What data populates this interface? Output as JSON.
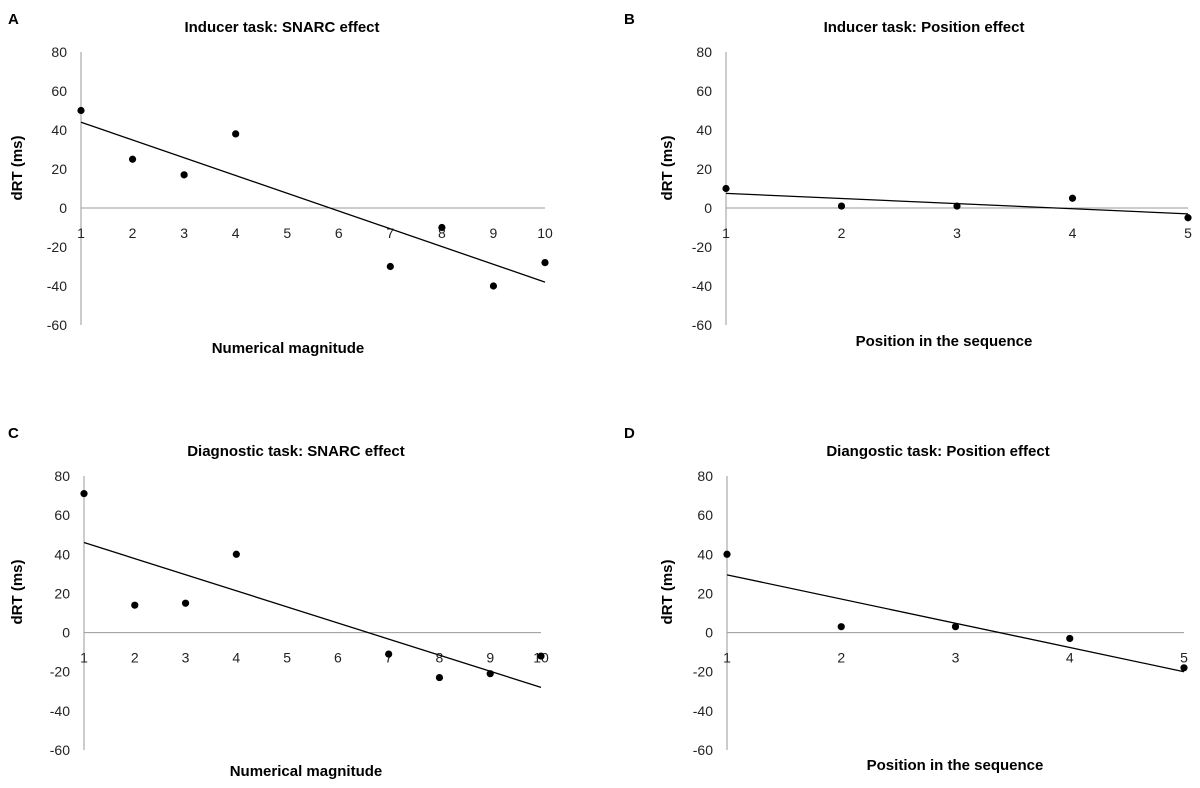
{
  "chart_data": [
    {
      "panel": "A",
      "type": "scatter",
      "title": "Inducer task: SNARC effect",
      "xlabel": "Numerical magnitude",
      "ylabel": "dRT (ms)",
      "xticks": [
        1,
        2,
        3,
        4,
        5,
        6,
        7,
        8,
        9,
        10
      ],
      "yticks": [
        80,
        60,
        40,
        20,
        0,
        -20,
        -40,
        -60
      ],
      "ylim": [
        -60,
        80
      ],
      "points": [
        {
          "x": 1,
          "y": 50
        },
        {
          "x": 2,
          "y": 25
        },
        {
          "x": 3,
          "y": 17
        },
        {
          "x": 4,
          "y": 38
        },
        {
          "x": 7,
          "y": -30
        },
        {
          "x": 8,
          "y": -10
        },
        {
          "x": 9,
          "y": -40
        },
        {
          "x": 10,
          "y": -28
        }
      ],
      "trendline": {
        "x1": 1,
        "y1": 44,
        "x2": 10,
        "y2": -38
      }
    },
    {
      "panel": "B",
      "type": "scatter",
      "title": "Inducer task: Position effect",
      "xlabel": "Position in the sequence",
      "ylabel": "dRT (ms)",
      "xticks": [
        1,
        2,
        3,
        4,
        5
      ],
      "yticks": [
        80,
        60,
        40,
        20,
        0,
        -20,
        -40,
        -60
      ],
      "ylim": [
        -60,
        80
      ],
      "points": [
        {
          "x": 1,
          "y": 10
        },
        {
          "x": 2,
          "y": 1
        },
        {
          "x": 3,
          "y": 1
        },
        {
          "x": 4,
          "y": 5
        },
        {
          "x": 5,
          "y": -5
        }
      ],
      "trendline": {
        "x1": 1,
        "y1": 7.5,
        "x2": 5,
        "y2": -3
      }
    },
    {
      "panel": "C",
      "type": "scatter",
      "title": "Diagnostic task: SNARC effect",
      "xlabel": "Numerical magnitude",
      "ylabel": "dRT (ms)",
      "xticks": [
        1,
        2,
        3,
        4,
        5,
        6,
        7,
        8,
        9,
        10
      ],
      "yticks": [
        80,
        60,
        40,
        20,
        0,
        -20,
        -40,
        -60
      ],
      "ylim": [
        -60,
        80
      ],
      "points": [
        {
          "x": 1,
          "y": 71
        },
        {
          "x": 2,
          "y": 14
        },
        {
          "x": 3,
          "y": 15
        },
        {
          "x": 4,
          "y": 40
        },
        {
          "x": 7,
          "y": -11
        },
        {
          "x": 8,
          "y": -23
        },
        {
          "x": 9,
          "y": -21
        },
        {
          "x": 10,
          "y": -12
        }
      ],
      "trendline": {
        "x1": 1,
        "y1": 46,
        "x2": 10,
        "y2": -28
      }
    },
    {
      "panel": "D",
      "type": "scatter",
      "title": "Diangostic task: Position effect",
      "xlabel": "Position in the sequence",
      "ylabel": "dRT (ms)",
      "xticks": [
        1,
        2,
        3,
        4,
        5
      ],
      "yticks": [
        80,
        60,
        40,
        20,
        0,
        -20,
        -40,
        -60
      ],
      "ylim": [
        -60,
        80
      ],
      "points": [
        {
          "x": 1,
          "y": 40
        },
        {
          "x": 2,
          "y": 3
        },
        {
          "x": 3,
          "y": 3
        },
        {
          "x": 4,
          "y": -3
        },
        {
          "x": 5,
          "y": -18
        }
      ],
      "trendline": {
        "x1": 1,
        "y1": 29.5,
        "x2": 5,
        "y2": -20
      }
    }
  ]
}
